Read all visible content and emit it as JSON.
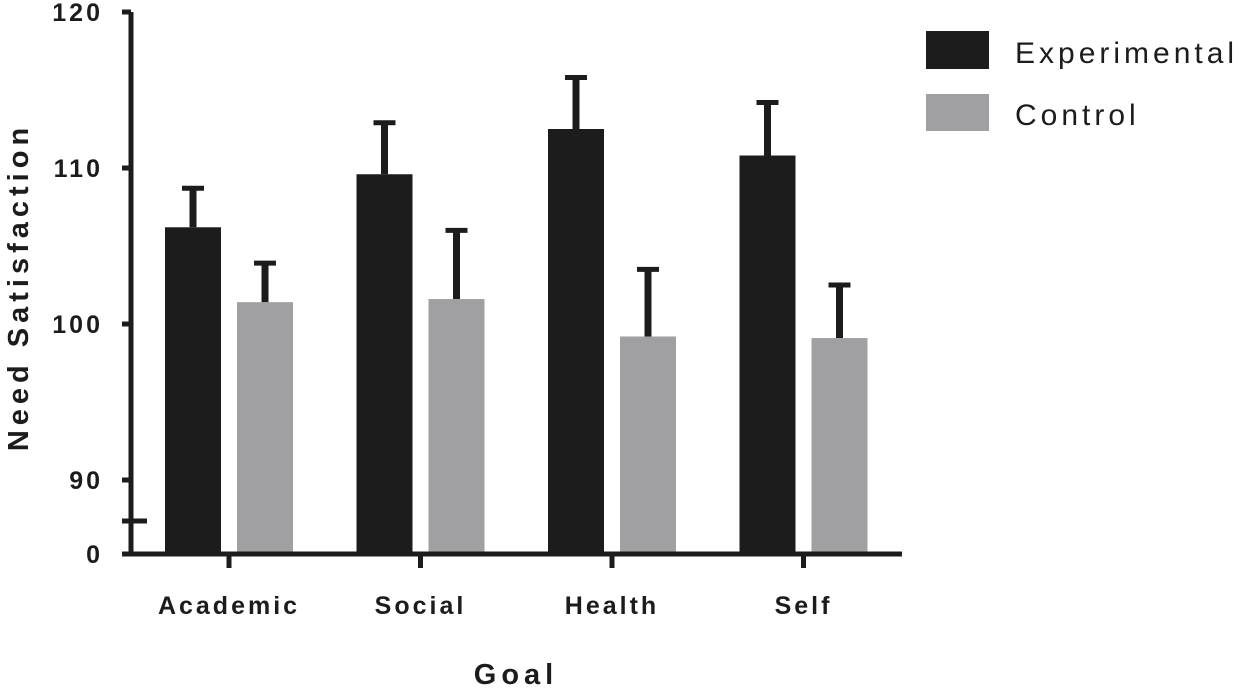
{
  "chart_data": {
    "type": "bar",
    "title": "",
    "xlabel": "Goal",
    "ylabel": "Need Satisfaction",
    "categories": [
      "Academic",
      "Social",
      "Health",
      "Self"
    ],
    "series": [
      {
        "name": "Experimental",
        "values": [
          106.2,
          109.6,
          112.5,
          110.8
        ],
        "errors": [
          2.5,
          3.3,
          3.3,
          3.4
        ],
        "color": "#1c1c1c"
      },
      {
        "name": "Control",
        "values": [
          101.4,
          101.6,
          99.2,
          99.1
        ],
        "errors": [
          2.5,
          4.4,
          4.3,
          3.4
        ],
        "color": "#a0a0a3"
      }
    ],
    "ylim": [
      85,
      120
    ],
    "y_ticks": [
      "0",
      "90",
      "100",
      "110",
      "120"
    ],
    "y_axis_break": true,
    "grid": false,
    "legend_position": "top-right"
  }
}
